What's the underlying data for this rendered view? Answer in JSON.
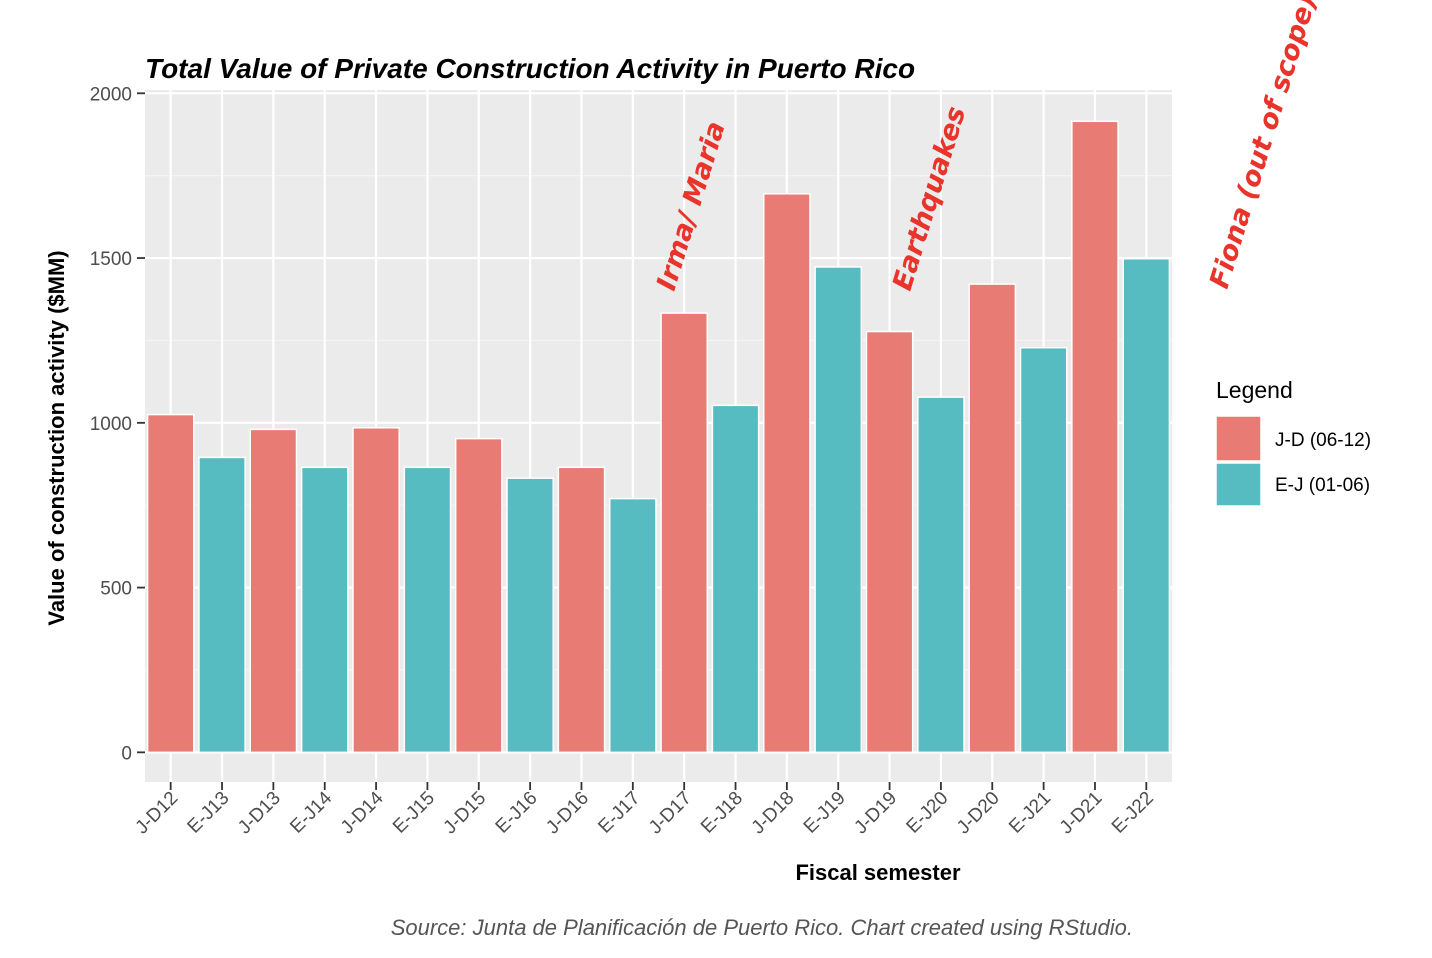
{
  "chart_data": {
    "type": "bar",
    "title": "Total Value of Private Construction Activity in Puerto Rico",
    "xlabel": "Fiscal semester",
    "ylabel": "Value of construction activity ($MM)",
    "ylim": [
      -90,
      2010
    ],
    "yticks": [
      0,
      500,
      1000,
      1500,
      2000
    ],
    "grid": true,
    "legend": {
      "title": "Legend",
      "placement": "right",
      "entries": [
        {
          "name": "J-D (06-12)",
          "color": "#e87b73"
        },
        {
          "name": "E-J (01-06)",
          "color": "#57bcc2"
        }
      ]
    },
    "categories": [
      "J-D12",
      "E-J13",
      "J-D13",
      "E-J14",
      "J-D14",
      "E-J15",
      "J-D15",
      "E-J16",
      "J-D16",
      "E-J17",
      "J-D17",
      "E-J18",
      "J-D18",
      "E-J19",
      "J-D19",
      "E-J20",
      "J-D20",
      "E-J21",
      "J-D21",
      "E-J22"
    ],
    "values": [
      1025,
      895,
      980,
      865,
      985,
      865,
      952,
      832,
      865,
      770,
      1333,
      1053,
      1695,
      1473,
      1277,
      1078,
      1421,
      1228,
      1915,
      1498
    ],
    "groups": [
      "J-D (06-12)",
      "E-J (01-06)",
      "J-D (06-12)",
      "E-J (01-06)",
      "J-D (06-12)",
      "E-J (01-06)",
      "J-D (06-12)",
      "E-J (01-06)",
      "J-D (06-12)",
      "E-J (01-06)",
      "J-D (06-12)",
      "E-J (01-06)",
      "J-D (06-12)",
      "E-J (01-06)",
      "J-D (06-12)",
      "E-J (01-06)",
      "J-D (06-12)",
      "E-J (01-06)",
      "J-D (06-12)",
      "E-J (01-06)"
    ],
    "annotations": [
      {
        "text": "Irma/ Maria",
        "category": "J-D17"
      },
      {
        "text": "Earthquakes",
        "category": "J-D19"
      },
      {
        "text": "Fiona (out of scope)",
        "category": "E-J22"
      }
    ],
    "source": "Source: Junta de Planificación de Puerto Rico. Chart created using RStudio."
  }
}
